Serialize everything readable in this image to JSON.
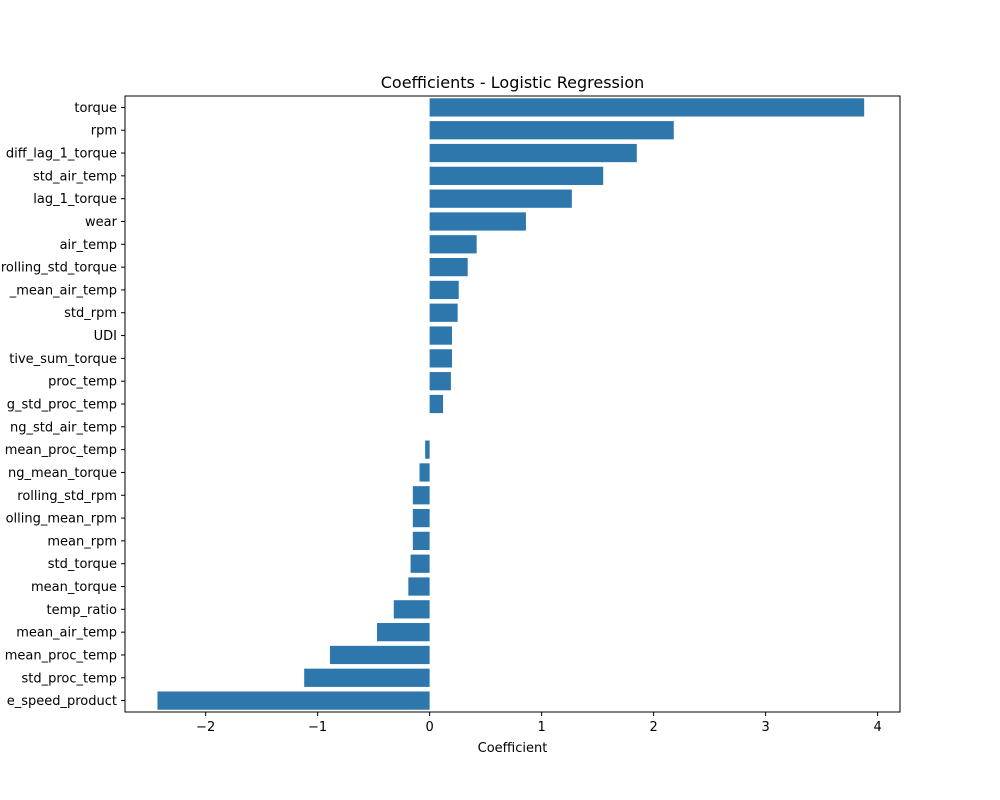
{
  "chart_data": {
    "type": "bar",
    "orientation": "horizontal",
    "title": "Coefficients - Logistic Regression",
    "xlabel": "Coefficient",
    "ylabel": "",
    "xlim": [
      -2.72,
      4.2
    ],
    "xticks": [
      -2,
      -1,
      0,
      1,
      2,
      3,
      4
    ],
    "xtick_labels": [
      "−2",
      "−1",
      "0",
      "1",
      "2",
      "3",
      "4"
    ],
    "bar_color": "#2e77ad",
    "categories": [
      "torque",
      "rpm",
      "diff_lag_1_torque",
      "std_air_temp",
      "lag_1_torque",
      "wear",
      "air_temp",
      "rolling_std_torque",
      "_mean_air_temp",
      "std_rpm",
      "UDI",
      "tive_sum_torque",
      "proc_temp",
      "g_std_proc_temp",
      "ng_std_air_temp",
      "mean_proc_temp",
      "ng_mean_torque",
      "rolling_std_rpm",
      "olling_mean_rpm",
      "mean_rpm",
      "std_torque",
      "mean_torque",
      "temp_ratio",
      "mean_air_temp",
      "mean_proc_temp",
      "std_proc_temp",
      "e_speed_product"
    ],
    "values": [
      3.88,
      2.18,
      1.85,
      1.55,
      1.27,
      0.86,
      0.42,
      0.34,
      0.26,
      0.25,
      0.2,
      0.2,
      0.19,
      0.12,
      0.0,
      -0.04,
      -0.09,
      -0.15,
      -0.15,
      -0.15,
      -0.17,
      -0.19,
      -0.32,
      -0.47,
      -0.89,
      -1.12,
      -2.43
    ]
  }
}
